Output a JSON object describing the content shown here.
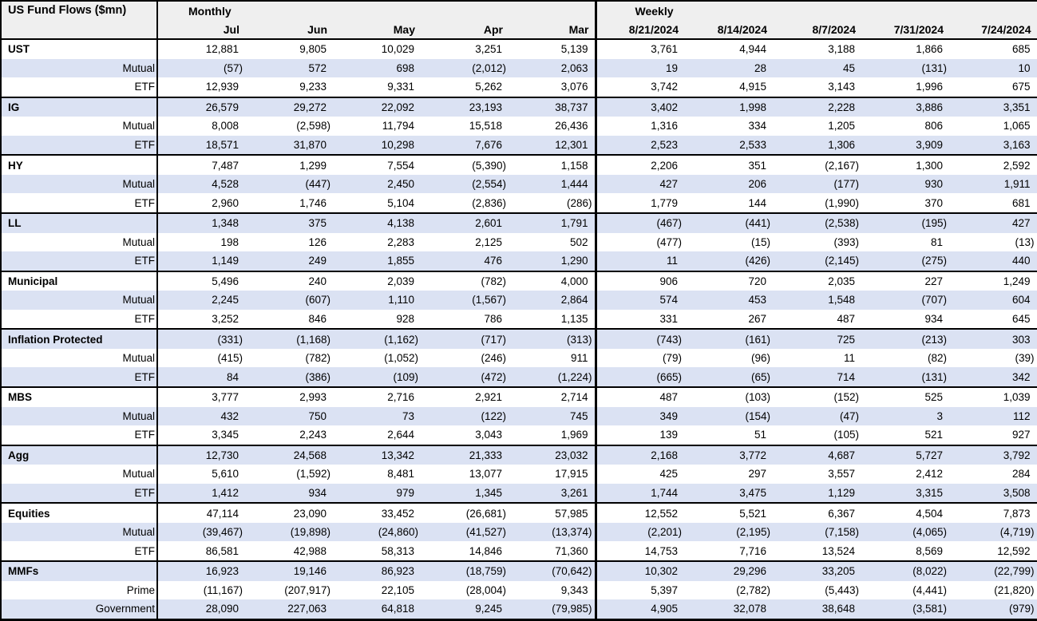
{
  "title": "US Fund Flows ($mn)",
  "colors": {
    "stripe": "#dbe2f3",
    "header_bg": "#efefef",
    "border": "#000000",
    "text": "#000000",
    "row_bg": "#ffffff"
  },
  "header": {
    "corner_label": "US Fund Flows ($mn)",
    "monthly_label": "Monthly",
    "weekly_label": "Weekly",
    "monthly_columns": [
      "Jul",
      "Jun",
      "May",
      "Apr",
      "Mar"
    ],
    "weekly_columns": [
      "8/21/2024",
      "8/14/2024",
      "8/7/2024",
      "7/31/2024",
      "7/24/2024"
    ]
  },
  "chart_data": {
    "type": "table",
    "title": "US Fund Flows ($mn)",
    "column_groups": [
      {
        "label": "Monthly",
        "columns": [
          "Jul",
          "Jun",
          "May",
          "Apr",
          "Mar"
        ]
      },
      {
        "label": "Weekly",
        "columns": [
          "8/21/2024",
          "8/14/2024",
          "8/7/2024",
          "7/31/2024",
          "7/24/2024"
        ]
      }
    ],
    "value_format": "thousands with comma separators, negatives in parentheses",
    "groups": [
      {
        "name": "UST",
        "total": [
          "12,881",
          "9,805",
          "10,029",
          "3,251",
          "5,139",
          "3,761",
          "4,944",
          "3,188",
          "1,866",
          "685"
        ],
        "subrows": [
          {
            "label": "Mutual",
            "values": [
              "(57)",
              "572",
              "698",
              "(2,012)",
              "2,063",
              "19",
              "28",
              "45",
              "(131)",
              "10"
            ]
          },
          {
            "label": "ETF",
            "values": [
              "12,939",
              "9,233",
              "9,331",
              "5,262",
              "3,076",
              "3,742",
              "4,915",
              "3,143",
              "1,996",
              "675"
            ]
          }
        ]
      },
      {
        "name": "IG",
        "total": [
          "26,579",
          "29,272",
          "22,092",
          "23,193",
          "38,737",
          "3,402",
          "1,998",
          "2,228",
          "3,886",
          "3,351"
        ],
        "subrows": [
          {
            "label": "Mutual",
            "values": [
              "8,008",
              "(2,598)",
              "11,794",
              "15,518",
              "26,436",
              "1,316",
              "334",
              "1,205",
              "806",
              "1,065"
            ]
          },
          {
            "label": "ETF",
            "values": [
              "18,571",
              "31,870",
              "10,298",
              "7,676",
              "12,301",
              "2,523",
              "2,533",
              "1,306",
              "3,909",
              "3,163"
            ]
          }
        ]
      },
      {
        "name": "HY",
        "total": [
          "7,487",
          "1,299",
          "7,554",
          "(5,390)",
          "1,158",
          "2,206",
          "351",
          "(2,167)",
          "1,300",
          "2,592"
        ],
        "subrows": [
          {
            "label": "Mutual",
            "values": [
              "4,528",
              "(447)",
              "2,450",
              "(2,554)",
              "1,444",
              "427",
              "206",
              "(177)",
              "930",
              "1,911"
            ]
          },
          {
            "label": "ETF",
            "values": [
              "2,960",
              "1,746",
              "5,104",
              "(2,836)",
              "(286)",
              "1,779",
              "144",
              "(1,990)",
              "370",
              "681"
            ]
          }
        ]
      },
      {
        "name": "LL",
        "total": [
          "1,348",
          "375",
          "4,138",
          "2,601",
          "1,791",
          "(467)",
          "(441)",
          "(2,538)",
          "(195)",
          "427"
        ],
        "subrows": [
          {
            "label": "Mutual",
            "values": [
              "198",
              "126",
              "2,283",
              "2,125",
              "502",
              "(477)",
              "(15)",
              "(393)",
              "81",
              "(13)"
            ]
          },
          {
            "label": "ETF",
            "values": [
              "1,149",
              "249",
              "1,855",
              "476",
              "1,290",
              "11",
              "(426)",
              "(2,145)",
              "(275)",
              "440"
            ]
          }
        ]
      },
      {
        "name": "Municipal",
        "total": [
          "5,496",
          "240",
          "2,039",
          "(782)",
          "4,000",
          "906",
          "720",
          "2,035",
          "227",
          "1,249"
        ],
        "subrows": [
          {
            "label": "Mutual",
            "values": [
              "2,245",
              "(607)",
              "1,110",
              "(1,567)",
              "2,864",
              "574",
              "453",
              "1,548",
              "(707)",
              "604"
            ]
          },
          {
            "label": "ETF",
            "values": [
              "3,252",
              "846",
              "928",
              "786",
              "1,135",
              "331",
              "267",
              "487",
              "934",
              "645"
            ]
          }
        ]
      },
      {
        "name": "Inflation Protected",
        "total": [
          "(331)",
          "(1,168)",
          "(1,162)",
          "(717)",
          "(313)",
          "(743)",
          "(161)",
          "725",
          "(213)",
          "303"
        ],
        "subrows": [
          {
            "label": "Mutual",
            "values": [
              "(415)",
              "(782)",
              "(1,052)",
              "(246)",
              "911",
              "(79)",
              "(96)",
              "11",
              "(82)",
              "(39)"
            ]
          },
          {
            "label": "ETF",
            "values": [
              "84",
              "(386)",
              "(109)",
              "(472)",
              "(1,224)",
              "(665)",
              "(65)",
              "714",
              "(131)",
              "342"
            ]
          }
        ]
      },
      {
        "name": "MBS",
        "total": [
          "3,777",
          "2,993",
          "2,716",
          "2,921",
          "2,714",
          "487",
          "(103)",
          "(152)",
          "525",
          "1,039"
        ],
        "subrows": [
          {
            "label": "Mutual",
            "values": [
              "432",
              "750",
              "73",
              "(122)",
              "745",
              "349",
              "(154)",
              "(47)",
              "3",
              "112"
            ]
          },
          {
            "label": "ETF",
            "values": [
              "3,345",
              "2,243",
              "2,644",
              "3,043",
              "1,969",
              "139",
              "51",
              "(105)",
              "521",
              "927"
            ]
          }
        ]
      },
      {
        "name": "Agg",
        "total": [
          "12,730",
          "24,568",
          "13,342",
          "21,333",
          "23,032",
          "2,168",
          "3,772",
          "4,687",
          "5,727",
          "3,792"
        ],
        "subrows": [
          {
            "label": "Mutual",
            "values": [
              "5,610",
              "(1,592)",
              "8,481",
              "13,077",
              "17,915",
              "425",
              "297",
              "3,557",
              "2,412",
              "284"
            ]
          },
          {
            "label": "ETF",
            "values": [
              "1,412",
              "934",
              "979",
              "1,345",
              "3,261",
              "1,744",
              "3,475",
              "1,129",
              "3,315",
              "3,508"
            ]
          }
        ]
      },
      {
        "name": "Equities",
        "total": [
          "47,114",
          "23,090",
          "33,452",
          "(26,681)",
          "57,985",
          "12,552",
          "5,521",
          "6,367",
          "4,504",
          "7,873"
        ],
        "subrows": [
          {
            "label": "Mutual",
            "values": [
              "(39,467)",
              "(19,898)",
              "(24,860)",
              "(41,527)",
              "(13,374)",
              "(2,201)",
              "(2,195)",
              "(7,158)",
              "(4,065)",
              "(4,719)"
            ]
          },
          {
            "label": "ETF",
            "values": [
              "86,581",
              "42,988",
              "58,313",
              "14,846",
              "71,360",
              "14,753",
              "7,716",
              "13,524",
              "8,569",
              "12,592"
            ]
          }
        ]
      },
      {
        "name": "MMFs",
        "total": [
          "16,923",
          "19,146",
          "86,923",
          "(18,759)",
          "(70,642)",
          "10,302",
          "29,296",
          "33,205",
          "(8,022)",
          "(22,799)"
        ],
        "subrows": [
          {
            "label": "Prime",
            "values": [
              "(11,167)",
              "(207,917)",
              "22,105",
              "(28,004)",
              "9,343",
              "5,397",
              "(2,782)",
              "(5,443)",
              "(4,441)",
              "(21,820)"
            ]
          },
          {
            "label": "Government",
            "values": [
              "28,090",
              "227,063",
              "64,818",
              "9,245",
              "(79,985)",
              "4,905",
              "32,078",
              "38,648",
              "(3,581)",
              "(979)"
            ]
          }
        ]
      }
    ]
  }
}
